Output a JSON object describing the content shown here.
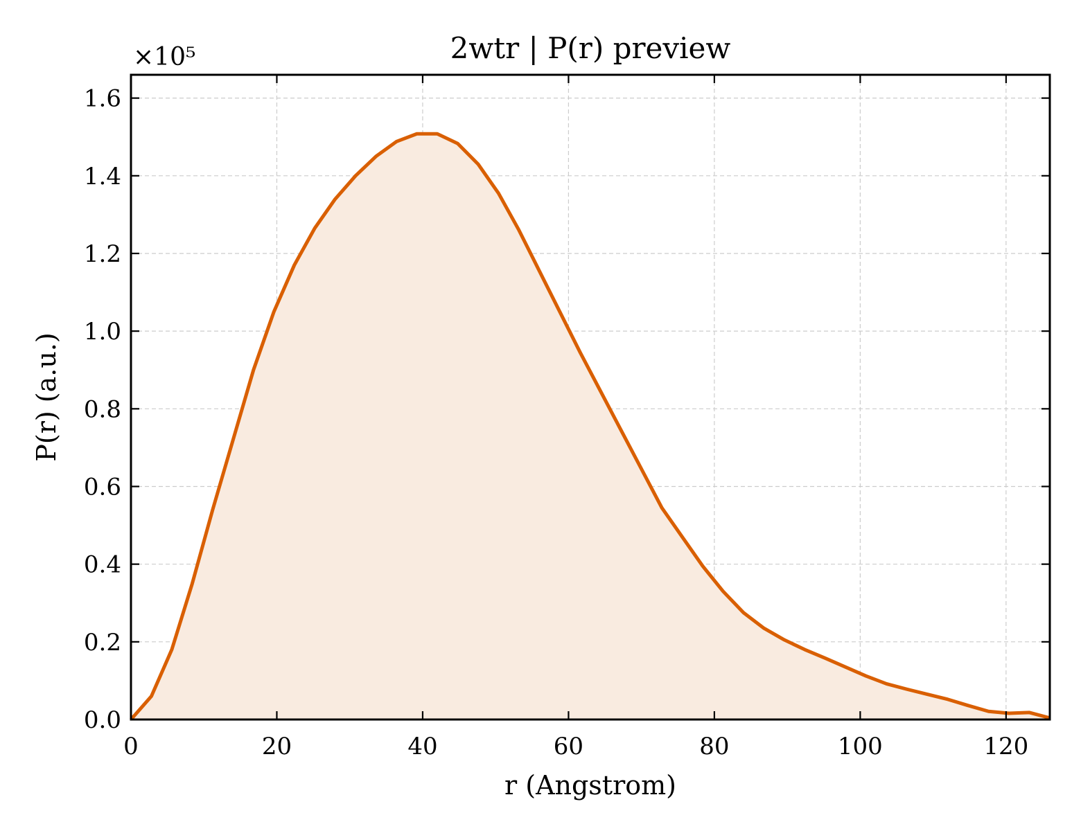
{
  "chart_data": {
    "type": "area",
    "title": "2wtr | P(r) preview",
    "xlabel": "r (Angstrom)",
    "ylabel": "P(r) (a.u.)",
    "y_offset_label": "×10⁵",
    "xlim": [
      0,
      126
    ],
    "ylim": [
      0,
      1.66
    ],
    "xticks": [
      0,
      20,
      40,
      60,
      80,
      100,
      120
    ],
    "xtick_labels": [
      "0",
      "20",
      "40",
      "60",
      "80",
      "100",
      "120"
    ],
    "yticks": [
      0,
      0.2,
      0.4,
      0.6,
      0.8,
      1.0,
      1.2,
      1.4,
      1.6
    ],
    "ytick_labels": [
      "0.0",
      "0.2",
      "0.4",
      "0.6",
      "0.8",
      "1.0",
      "1.2",
      "1.4",
      "1.6"
    ],
    "grid": true,
    "line_color": "#d95f02",
    "fill_color": "#f9ebe0",
    "series": [
      {
        "x": [
          0,
          2.8,
          5.6,
          8.4,
          11.2,
          14.0,
          16.8,
          19.6,
          22.4,
          25.2,
          28.0,
          30.8,
          33.6,
          36.4,
          39.2,
          42.0,
          44.8,
          47.6,
          50.4,
          53.2,
          56.0,
          58.8,
          61.6,
          64.4,
          67.2,
          70.0,
          72.8,
          75.6,
          78.4,
          81.2,
          84.0,
          86.8,
          89.6,
          92.4,
          95.2,
          98.0,
          100.8,
          103.6,
          106.4,
          109.2,
          112.0,
          114.8,
          117.6,
          120.4,
          123.2,
          126.0
        ],
        "y": [
          0.0,
          0.06,
          0.18,
          0.35,
          0.54,
          0.72,
          0.9,
          1.05,
          1.17,
          1.265,
          1.34,
          1.4,
          1.45,
          1.488,
          1.508,
          1.508,
          1.483,
          1.43,
          1.355,
          1.26,
          1.155,
          1.05,
          0.945,
          0.845,
          0.745,
          0.645,
          0.545,
          0.47,
          0.395,
          0.33,
          0.275,
          0.235,
          0.205,
          0.18,
          0.158,
          0.135,
          0.112,
          0.092,
          0.078,
          0.065,
          0.052,
          0.036,
          0.021,
          0.016,
          0.018,
          0.004
        ]
      }
    ]
  }
}
